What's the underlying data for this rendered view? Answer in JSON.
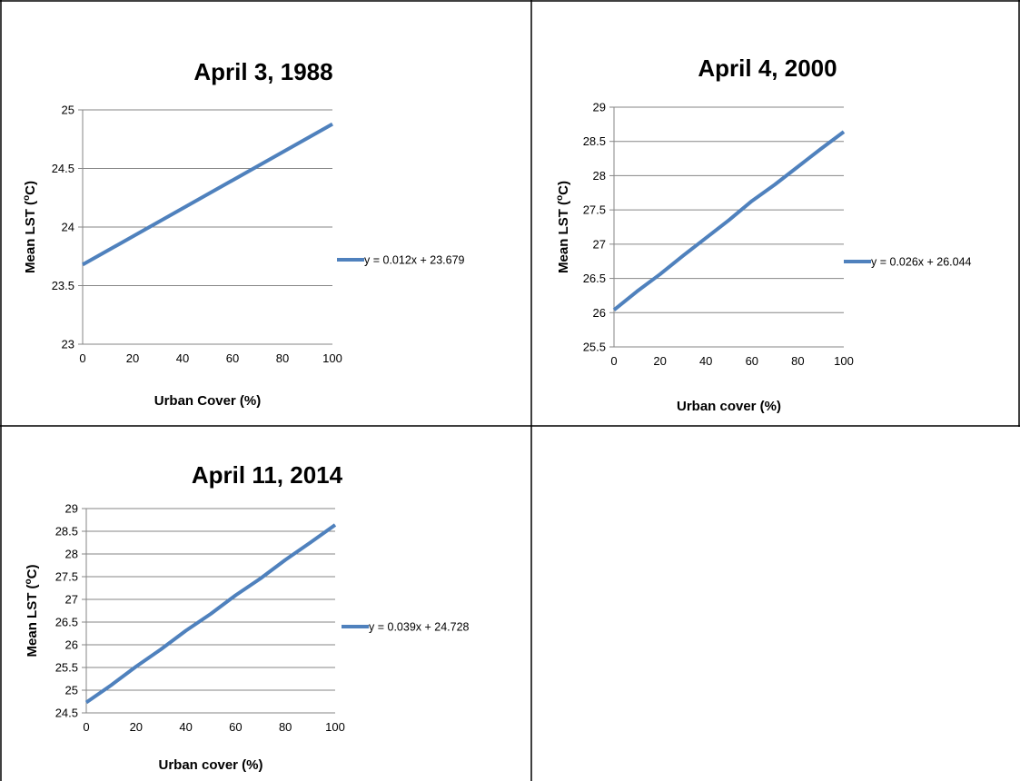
{
  "line_color": "#4F81BD",
  "grid_color": "#868686",
  "chart_data": [
    {
      "type": "line",
      "title": "April 3, 1988",
      "xlabel": "Urban Cover (%)",
      "ylabel": "Mean LST (°C)",
      "xlim": [
        0,
        100
      ],
      "ylim": [
        23,
        25
      ],
      "xticks": [
        "0",
        "20",
        "40",
        "60",
        "80",
        "100"
      ],
      "yticks": [
        "23",
        "23.5",
        "24",
        "24.5",
        "25"
      ],
      "grid": true,
      "legend_position": "right",
      "series": [
        {
          "name": "y = 0.012x + 23.679",
          "x": [
            0,
            100
          ],
          "values": [
            23.679,
            24.879
          ]
        }
      ]
    },
    {
      "type": "line",
      "title": "April 4, 2000",
      "xlabel": "Urban cover (%)",
      "ylabel": "Mean LST (°C)",
      "xlim": [
        0,
        100
      ],
      "ylim": [
        25.5,
        29
      ],
      "xticks": [
        "0",
        "20",
        "40",
        "60",
        "80",
        "100"
      ],
      "yticks": [
        "25.5",
        "26",
        "26.5",
        "27",
        "27.5",
        "28",
        "28.5",
        "29"
      ],
      "grid": true,
      "legend_position": "right",
      "series": [
        {
          "name": "y = 0.026x + 26.044",
          "x": [
            0,
            10,
            20,
            30,
            40,
            50,
            60,
            70,
            80,
            90,
            100
          ],
          "values": [
            26.04,
            26.31,
            26.56,
            26.83,
            27.09,
            27.35,
            27.63,
            27.87,
            28.13,
            28.39,
            28.64
          ]
        }
      ]
    },
    {
      "type": "line",
      "title": "April 11, 2014",
      "xlabel": "Urban cover (%)",
      "ylabel": "Mean LST (°C)",
      "xlim": [
        0,
        100
      ],
      "ylim": [
        24.5,
        29
      ],
      "xticks": [
        "0",
        "20",
        "40",
        "60",
        "80",
        "100"
      ],
      "yticks": [
        "24.5",
        "25",
        "25.5",
        "26",
        "26.5",
        "27",
        "27.5",
        "28",
        "28.5",
        "29"
      ],
      "grid": true,
      "legend_position": "right",
      "series": [
        {
          "name": "y = 0.039x + 24.728",
          "x": [
            0,
            10,
            20,
            30,
            40,
            50,
            60,
            70,
            80,
            90,
            100
          ],
          "values": [
            24.73,
            25.11,
            25.52,
            25.9,
            26.31,
            26.68,
            27.09,
            27.46,
            27.87,
            28.25,
            28.64
          ]
        }
      ]
    }
  ]
}
